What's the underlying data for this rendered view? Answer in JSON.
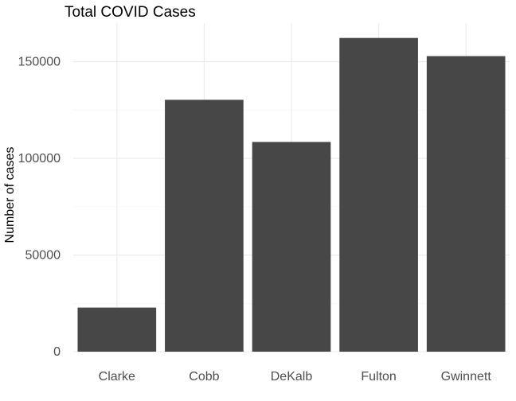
{
  "chart_data": {
    "type": "bar",
    "title": "Total COVID Cases",
    "xlabel": "",
    "ylabel": "Number of cases",
    "categories": [
      "Clarke",
      "Cobb",
      "DeKalb",
      "Fulton",
      "Gwinnett"
    ],
    "values": [
      22800,
      130300,
      108500,
      162300,
      152900
    ],
    "ylim": [
      0,
      170000
    ],
    "yticks": [
      0,
      50000,
      100000,
      150000
    ],
    "ytick_labels": [
      "0",
      "50000",
      "100000",
      "150000"
    ],
    "grid": true,
    "legend": "none",
    "colors": {
      "bar": "#474747",
      "grid": "#ebebeb",
      "background": "#ffffff"
    }
  }
}
